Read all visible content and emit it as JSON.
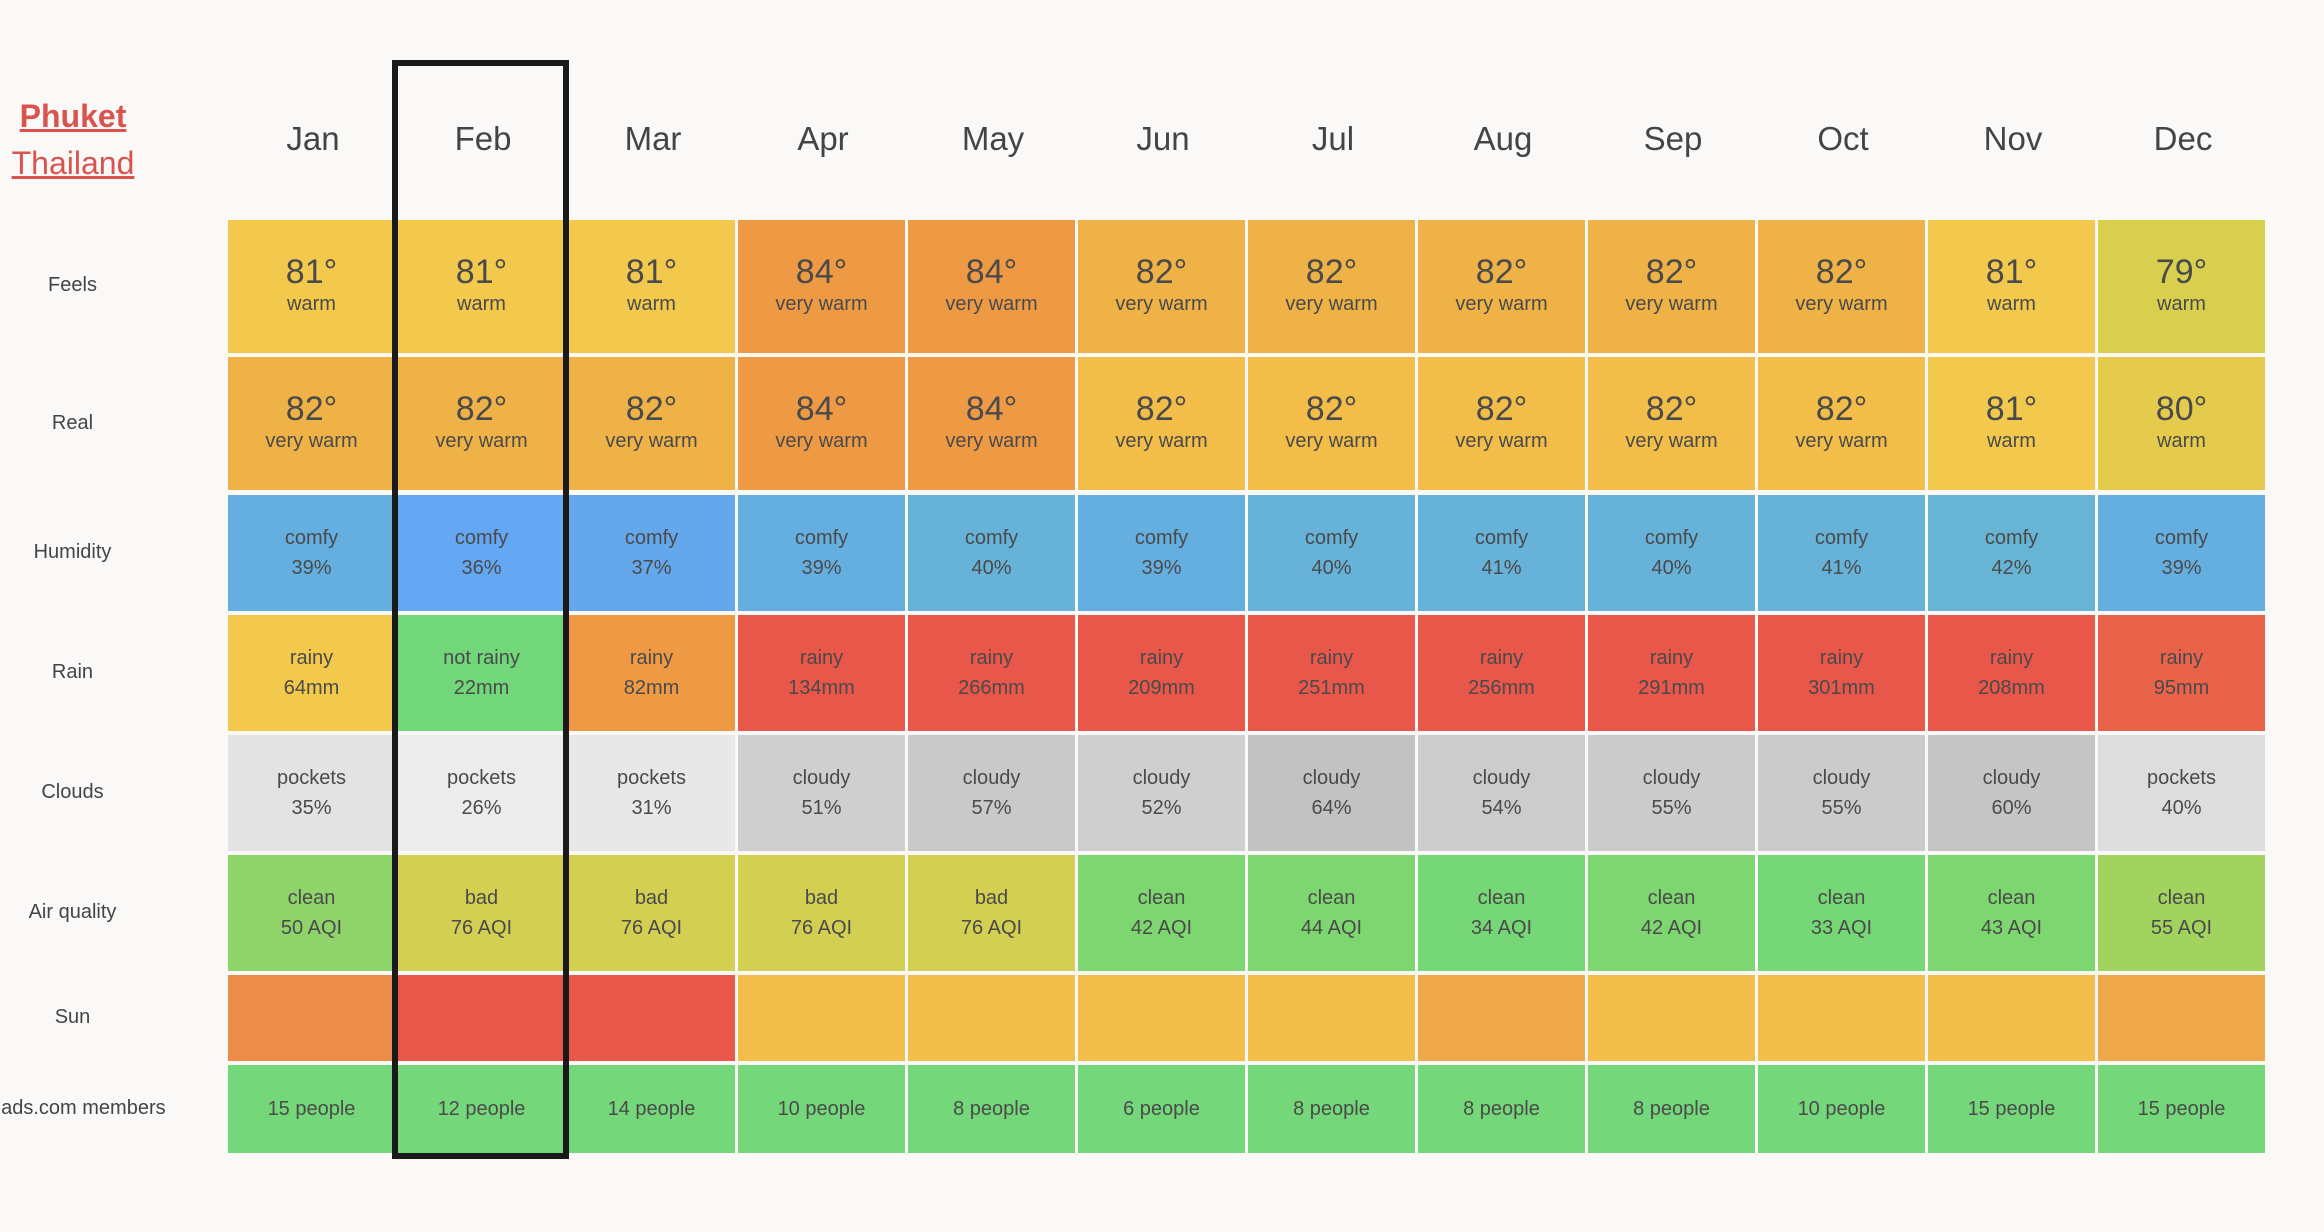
{
  "location": {
    "city": "Phuket",
    "country": "Thailand"
  },
  "months": [
    "Jan",
    "Feb",
    "Mar",
    "Apr",
    "May",
    "Jun",
    "Jul",
    "Aug",
    "Sep",
    "Oct",
    "Nov",
    "Dec"
  ],
  "row_labels": {
    "feels": "Feels",
    "real": "Real",
    "humidity": "Humidity",
    "rain": "Rain",
    "clouds": "Clouds",
    "air": "Air quality",
    "sun": "Sun",
    "members": "nads.com members"
  },
  "feels": [
    {
      "value": "81°",
      "label": "warm",
      "color": "#f2c94c"
    },
    {
      "value": "81°",
      "label": "warm",
      "color": "#f2c94c"
    },
    {
      "value": "81°",
      "label": "warm",
      "color": "#f2c94c"
    },
    {
      "value": "84°",
      "label": "very warm",
      "color": "#ee9a45"
    },
    {
      "value": "84°",
      "label": "very warm",
      "color": "#ee9a45"
    },
    {
      "value": "82°",
      "label": "very warm",
      "color": "#efb247"
    },
    {
      "value": "82°",
      "label": "very warm",
      "color": "#efb247"
    },
    {
      "value": "82°",
      "label": "very warm",
      "color": "#efb247"
    },
    {
      "value": "82°",
      "label": "very warm",
      "color": "#efb247"
    },
    {
      "value": "82°",
      "label": "very warm",
      "color": "#efb247"
    },
    {
      "value": "81°",
      "label": "warm",
      "color": "#f2c94c"
    },
    {
      "value": "79°",
      "label": "warm",
      "color": "#d9cf4f"
    }
  ],
  "real": [
    {
      "value": "82°",
      "label": "very warm",
      "color": "#efb247"
    },
    {
      "value": "82°",
      "label": "very warm",
      "color": "#efb247"
    },
    {
      "value": "82°",
      "label": "very warm",
      "color": "#efb247"
    },
    {
      "value": "84°",
      "label": "very warm",
      "color": "#ee9a45"
    },
    {
      "value": "84°",
      "label": "very warm",
      "color": "#ee9a45"
    },
    {
      "value": "82°",
      "label": "very warm",
      "color": "#f2bd48"
    },
    {
      "value": "82°",
      "label": "very warm",
      "color": "#f2bd48"
    },
    {
      "value": "82°",
      "label": "very warm",
      "color": "#f2bd48"
    },
    {
      "value": "82°",
      "label": "very warm",
      "color": "#f2bd48"
    },
    {
      "value": "82°",
      "label": "very warm",
      "color": "#f2bd48"
    },
    {
      "value": "81°",
      "label": "warm",
      "color": "#f2c94c"
    },
    {
      "value": "80°",
      "label": "warm",
      "color": "#e5cb4c"
    }
  ],
  "humidity": [
    {
      "t1": "comfy",
      "t2": "39%",
      "color": "#64aee0"
    },
    {
      "t1": "comfy",
      "t2": "36%",
      "color": "#64a7f2"
    },
    {
      "t1": "comfy",
      "t2": "37%",
      "color": "#64a7ea"
    },
    {
      "t1": "comfy",
      "t2": "39%",
      "color": "#64aee0"
    },
    {
      "t1": "comfy",
      "t2": "40%",
      "color": "#66b2d9"
    },
    {
      "t1": "comfy",
      "t2": "39%",
      "color": "#64aee0"
    },
    {
      "t1": "comfy",
      "t2": "40%",
      "color": "#66b2d9"
    },
    {
      "t1": "comfy",
      "t2": "41%",
      "color": "#66b2d9"
    },
    {
      "t1": "comfy",
      "t2": "40%",
      "color": "#66b2d9"
    },
    {
      "t1": "comfy",
      "t2": "41%",
      "color": "#66b2d9"
    },
    {
      "t1": "comfy",
      "t2": "42%",
      "color": "#67b4d4"
    },
    {
      "t1": "comfy",
      "t2": "39%",
      "color": "#64aee0"
    }
  ],
  "rain": [
    {
      "t1": "rainy",
      "t2": "64mm",
      "color": "#f2c94c"
    },
    {
      "t1": "not rainy",
      "t2": "22mm",
      "color": "#72d67a"
    },
    {
      "t1": "rainy",
      "t2": "82mm",
      "color": "#ee9a45"
    },
    {
      "t1": "rainy",
      "t2": "134mm",
      "color": "#e8574a"
    },
    {
      "t1": "rainy",
      "t2": "266mm",
      "color": "#e8574a"
    },
    {
      "t1": "rainy",
      "t2": "209mm",
      "color": "#e8574a"
    },
    {
      "t1": "rainy",
      "t2": "251mm",
      "color": "#e8574a"
    },
    {
      "t1": "rainy",
      "t2": "256mm",
      "color": "#e8574a"
    },
    {
      "t1": "rainy",
      "t2": "291mm",
      "color": "#e8574a"
    },
    {
      "t1": "rainy",
      "t2": "301mm",
      "color": "#e8574a"
    },
    {
      "t1": "rainy",
      "t2": "208mm",
      "color": "#e8574a"
    },
    {
      "t1": "rainy",
      "t2": "95mm",
      "color": "#e8634a"
    }
  ],
  "clouds": [
    {
      "t1": "pockets",
      "t2": "35%",
      "color": "#e3e3e3"
    },
    {
      "t1": "pockets",
      "t2": "26%",
      "color": "#ececec"
    },
    {
      "t1": "pockets",
      "t2": "31%",
      "color": "#e8e8e8"
    },
    {
      "t1": "cloudy",
      "t2": "51%",
      "color": "#cfcfcf"
    },
    {
      "t1": "cloudy",
      "t2": "57%",
      "color": "#c9c9c9"
    },
    {
      "t1": "cloudy",
      "t2": "52%",
      "color": "#cfcfcf"
    },
    {
      "t1": "cloudy",
      "t2": "64%",
      "color": "#c2c2c2"
    },
    {
      "t1": "cloudy",
      "t2": "54%",
      "color": "#cccccc"
    },
    {
      "t1": "cloudy",
      "t2": "55%",
      "color": "#cbcbcb"
    },
    {
      "t1": "cloudy",
      "t2": "55%",
      "color": "#cbcbcb"
    },
    {
      "t1": "cloudy",
      "t2": "60%",
      "color": "#c5c5c5"
    },
    {
      "t1": "pockets",
      "t2": "40%",
      "color": "#dddddd"
    }
  ],
  "air": [
    {
      "t1": "clean",
      "t2": "50 AQI",
      "color": "#8fd46a"
    },
    {
      "t1": "bad",
      "t2": "76 AQI",
      "color": "#d2cf52"
    },
    {
      "t1": "bad",
      "t2": "76 AQI",
      "color": "#d2cf52"
    },
    {
      "t1": "bad",
      "t2": "76 AQI",
      "color": "#d2cf52"
    },
    {
      "t1": "bad",
      "t2": "76 AQI",
      "color": "#d2cf52"
    },
    {
      "t1": "clean",
      "t2": "42 AQI",
      "color": "#7dd66f"
    },
    {
      "t1": "clean",
      "t2": "44 AQI",
      "color": "#7dd66f"
    },
    {
      "t1": "clean",
      "t2": "34 AQI",
      "color": "#76d776"
    },
    {
      "t1": "clean",
      "t2": "42 AQI",
      "color": "#7dd66f"
    },
    {
      "t1": "clean",
      "t2": "33 AQI",
      "color": "#76d776"
    },
    {
      "t1": "clean",
      "t2": "43 AQI",
      "color": "#7dd66f"
    },
    {
      "t1": "clean",
      "t2": "55 AQI",
      "color": "#a2d35f"
    }
  ],
  "sun": [
    {
      "color": "#ec8c48"
    },
    {
      "color": "#e8574a"
    },
    {
      "color": "#e8574a"
    },
    {
      "color": "#f2bd48"
    },
    {
      "color": "#f2bd48"
    },
    {
      "color": "#f2bd48"
    },
    {
      "color": "#f2bd48"
    },
    {
      "color": "#eea84a"
    },
    {
      "color": "#f2bd48"
    },
    {
      "color": "#f2bd48"
    },
    {
      "color": "#f2bd48"
    },
    {
      "color": "#eea84a"
    }
  ],
  "members": [
    {
      "text": "15 people",
      "color": "#74d87a"
    },
    {
      "text": "12 people",
      "color": "#74d87a"
    },
    {
      "text": "14 people",
      "color": "#74d87a"
    },
    {
      "text": "10 people",
      "color": "#74d87a"
    },
    {
      "text": "8 people",
      "color": "#74d87a"
    },
    {
      "text": "6 people",
      "color": "#74d87a"
    },
    {
      "text": "8 people",
      "color": "#74d87a"
    },
    {
      "text": "8 people",
      "color": "#74d87a"
    },
    {
      "text": "8 people",
      "color": "#74d87a"
    },
    {
      "text": "10 people",
      "color": "#74d87a"
    },
    {
      "text": "15 people",
      "color": "#74d87a"
    },
    {
      "text": "15 people",
      "color": "#74d87a"
    }
  ],
  "highlighted_month": "Feb"
}
